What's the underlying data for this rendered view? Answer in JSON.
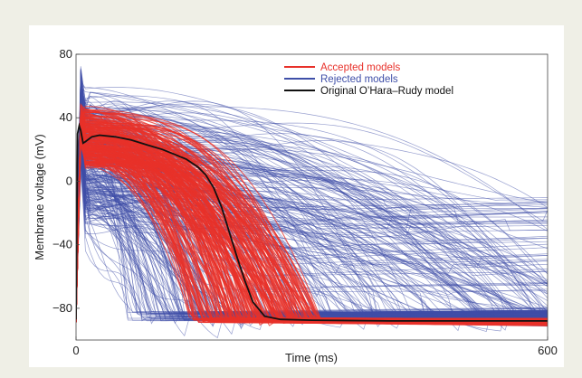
{
  "chart_data": {
    "type": "line",
    "xlabel": "Time (ms)",
    "ylabel": "Membrane voltage (mV)",
    "xlim": [
      0,
      600
    ],
    "ylim": [
      -100,
      80
    ],
    "x_ticks": [
      "0",
      "600"
    ],
    "y_ticks": [
      "80",
      "40",
      "0",
      "−40",
      "−80"
    ],
    "y_tick_values": [
      80,
      40,
      0,
      -40,
      -80
    ],
    "legend_position": "top-center",
    "series": [
      {
        "name": "Accepted models",
        "color": "#e8312a",
        "role": "population"
      },
      {
        "name": "Rejected models",
        "color": "#3f4fa8",
        "role": "population"
      },
      {
        "name": "Original O’Hara–Rudy model",
        "color": "#111111",
        "x": [
          0,
          2,
          4,
          6,
          9,
          12,
          20,
          30,
          50,
          70,
          90,
          110,
          125,
          140,
          155,
          165,
          175,
          185,
          195,
          205,
          215,
          225,
          240,
          260,
          300,
          400,
          500,
          600
        ],
        "y": [
          -87,
          30,
          35,
          32,
          24,
          25,
          28,
          29,
          28,
          26,
          23,
          20,
          17,
          14,
          9,
          4,
          -4,
          -16,
          -32,
          -48,
          -63,
          -76,
          -85,
          -87,
          -87.5,
          -88,
          -88,
          -88
        ]
      }
    ]
  }
}
